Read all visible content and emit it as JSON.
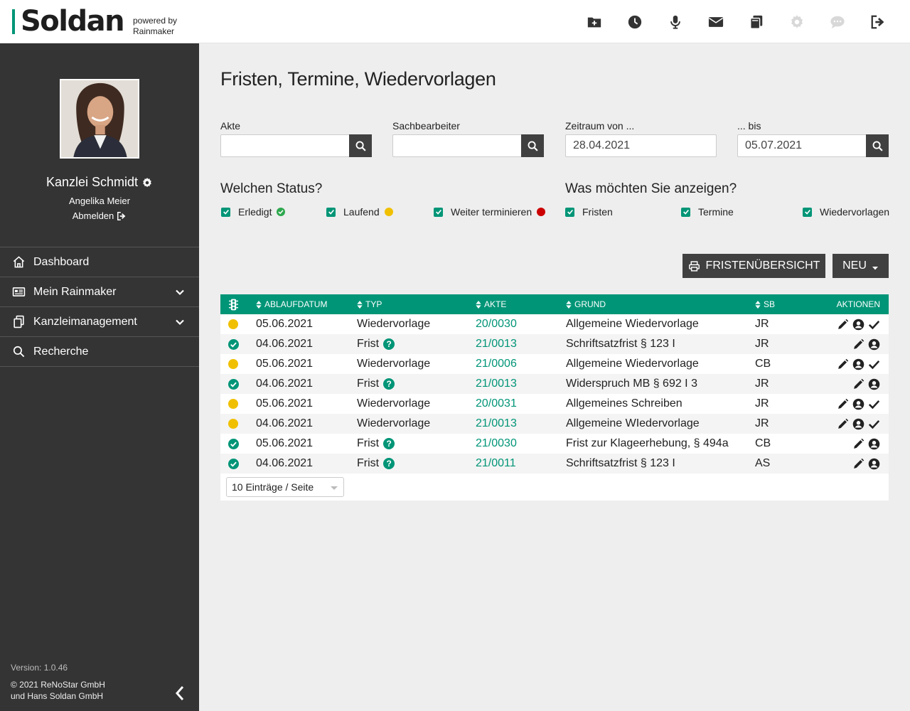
{
  "header": {
    "logo": "Soldan",
    "powered_line1": "powered by",
    "powered_line2": "Rainmaker",
    "icons": [
      "folder-plus-icon",
      "clock-icon",
      "microphone-icon",
      "envelope-icon",
      "copy-icon",
      "gear-icon",
      "chat-icon",
      "sign-out-icon"
    ]
  },
  "sidebar": {
    "title": "Kanzlei Schmidt",
    "user": "Angelika Meier",
    "logout": "Abmelden",
    "nav": [
      {
        "label": "Dashboard",
        "icon": "home-icon"
      },
      {
        "label": "Mein Rainmaker",
        "icon": "newspaper-icon",
        "expandable": true
      },
      {
        "label": "Kanzleimanagement",
        "icon": "copy-icon",
        "expandable": true
      },
      {
        "label": "Recherche",
        "icon": "search-icon"
      }
    ],
    "version": "Version: 1.0.46",
    "copyright_line1": "© 2021 ReNoStar GmbH",
    "copyright_line2": "und Hans Soldan GmbH"
  },
  "main": {
    "title": "Fristen, Termine, Wiedervorlagen",
    "filters": {
      "akte_label": "Akte",
      "akte_value": "",
      "sb_label": "Sachbearbeiter",
      "sb_value": "",
      "from_label": "Zeitraum von ...",
      "from_value": "28.04.2021",
      "to_label": "... bis",
      "to_value": "05.07.2021"
    },
    "status_heading": "Welchen Status?",
    "status_options": [
      {
        "label": "Erledigt",
        "checked": true,
        "indicator": "green-check"
      },
      {
        "label": "Laufend",
        "checked": true,
        "indicator": "#f0c000"
      },
      {
        "label": "Weiter terminieren",
        "checked": true,
        "indicator": "#cc0000"
      }
    ],
    "show_heading": "Was möchten Sie anzeigen?",
    "show_options": [
      {
        "label": "Fristen",
        "checked": true
      },
      {
        "label": "Termine",
        "checked": true
      },
      {
        "label": "Wiedervorlagen",
        "checked": true
      }
    ],
    "buttons": {
      "overview": "FRISTENÜBERSICHT",
      "new": "NEU"
    },
    "table": {
      "columns": [
        "",
        "ABLAUFDATUM",
        "TYP",
        "AKTE",
        "GRUND",
        "SB",
        "AKTIONEN"
      ],
      "rows": [
        {
          "status": "laufend",
          "date": "05.06.2021",
          "typ": "Wiedervorlage",
          "akte": "20/0030",
          "grund": "Allgemeine Wiedervorlage",
          "sb": "JR",
          "actions": [
            "edit",
            "user",
            "check"
          ]
        },
        {
          "status": "erledigt",
          "date": "04.06.2021",
          "typ": "Frist",
          "akte": "21/0013",
          "grund": "Schriftsatzfrist § 123 I",
          "sb": "JR",
          "actions": [
            "edit",
            "user"
          ]
        },
        {
          "status": "laufend",
          "date": "05.06.2021",
          "typ": "Wiedervorlage",
          "akte": "21/0006",
          "grund": "Allgemeine Wiedervorlage",
          "sb": "CB",
          "actions": [
            "edit",
            "user",
            "check"
          ]
        },
        {
          "status": "erledigt",
          "date": "04.06.2021",
          "typ": "Frist",
          "akte": "21/0013",
          "grund": "Widerspruch MB § 692 I 3",
          "sb": "JR",
          "actions": [
            "edit",
            "user"
          ]
        },
        {
          "status": "laufend",
          "date": "05.06.2021",
          "typ": "Wiedervorlage",
          "akte": "20/0031",
          "grund": "Allgemeines Schreiben",
          "sb": "JR",
          "actions": [
            "edit",
            "user",
            "check"
          ]
        },
        {
          "status": "laufend",
          "date": "04.06.2021",
          "typ": "Wiedervorlage",
          "akte": "21/0013",
          "grund": "Allgemeine WIedervorlage",
          "sb": "JR",
          "actions": [
            "edit",
            "user",
            "check"
          ]
        },
        {
          "status": "erledigt",
          "date": "05.06.2021",
          "typ": "Frist",
          "akte": "21/0030",
          "grund": "Frist zur Klageerhebung, § 494a",
          "sb": "CB",
          "actions": [
            "edit",
            "user"
          ]
        },
        {
          "status": "erledigt",
          "date": "04.06.2021",
          "typ": "Frist",
          "akte": "21/0011",
          "grund": "Schriftsatzfrist § 123 I",
          "sb": "AS",
          "actions": [
            "edit",
            "user"
          ]
        }
      ],
      "page_size": "10 Einträge / Seite"
    }
  },
  "colors": {
    "accent": "#009577",
    "dark": "#343434",
    "laufend": "#f0c000",
    "erledigt": "#009577",
    "weiter": "#cc0000"
  }
}
